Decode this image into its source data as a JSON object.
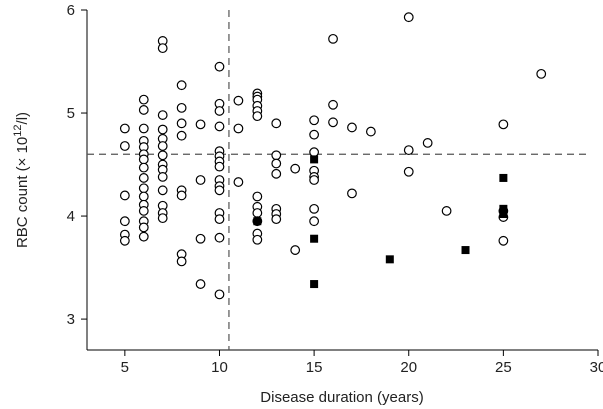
{
  "chart_data": {
    "type": "scatter",
    "title": "",
    "xlabel": "Disease duration (years)",
    "ylabel_main": "RBC count (×",
    "ylabel_base": " 10",
    "ylabel_exp": "12",
    "ylabel_tail": "/l)",
    "xlim": [
      3,
      30
    ],
    "ylim": [
      2.7,
      6.0
    ],
    "xticks": [
      5,
      10,
      15,
      20,
      25,
      30
    ],
    "yticks": [
      3,
      4,
      5,
      6
    ],
    "grid": false,
    "reference_lines": {
      "x": 10.5,
      "y": 4.6
    },
    "series": [
      {
        "marker": "open-circle",
        "points": [
          [
            5,
            4.85
          ],
          [
            5,
            4.68
          ],
          [
            5,
            4.2
          ],
          [
            5,
            3.95
          ],
          [
            5,
            3.82
          ],
          [
            5,
            3.76
          ],
          [
            6,
            5.13
          ],
          [
            6,
            5.03
          ],
          [
            6,
            4.85
          ],
          [
            6,
            4.73
          ],
          [
            6,
            4.67
          ],
          [
            6,
            4.6
          ],
          [
            6,
            4.55
          ],
          [
            6,
            4.47
          ],
          [
            6,
            4.37
          ],
          [
            6,
            4.27
          ],
          [
            6,
            4.19
          ],
          [
            6,
            4.11
          ],
          [
            6,
            4.05
          ],
          [
            6,
            3.95
          ],
          [
            6,
            3.89
          ],
          [
            6,
            3.8
          ],
          [
            7,
            5.7
          ],
          [
            7,
            5.63
          ],
          [
            7,
            4.98
          ],
          [
            7,
            4.84
          ],
          [
            7,
            4.75
          ],
          [
            7,
            4.68
          ],
          [
            7,
            4.59
          ],
          [
            7,
            4.5
          ],
          [
            7,
            4.45
          ],
          [
            7,
            4.38
          ],
          [
            7,
            4.25
          ],
          [
            7,
            4.1
          ],
          [
            7,
            4.03
          ],
          [
            7,
            3.98
          ],
          [
            8,
            5.27
          ],
          [
            8,
            5.05
          ],
          [
            8,
            4.9
          ],
          [
            8,
            4.78
          ],
          [
            8,
            4.25
          ],
          [
            8,
            4.2
          ],
          [
            8,
            3.63
          ],
          [
            8,
            3.56
          ],
          [
            9,
            4.89
          ],
          [
            9,
            4.35
          ],
          [
            9,
            3.78
          ],
          [
            9,
            3.34
          ],
          [
            10,
            5.45
          ],
          [
            10,
            5.09
          ],
          [
            10,
            5.02
          ],
          [
            10,
            4.87
          ],
          [
            10,
            4.63
          ],
          [
            10,
            4.58
          ],
          [
            10,
            4.53
          ],
          [
            10,
            4.48
          ],
          [
            10,
            4.35
          ],
          [
            10,
            4.29
          ],
          [
            10,
            4.25
          ],
          [
            10,
            4.03
          ],
          [
            10,
            3.97
          ],
          [
            10,
            3.79
          ],
          [
            10,
            3.24
          ],
          [
            11,
            5.12
          ],
          [
            11,
            4.85
          ],
          [
            11,
            4.33
          ],
          [
            12,
            5.19
          ],
          [
            12,
            5.16
          ],
          [
            12,
            5.13
          ],
          [
            12,
            5.07
          ],
          [
            12,
            5.02
          ],
          [
            12,
            4.97
          ],
          [
            12,
            4.19
          ],
          [
            12,
            4.09
          ],
          [
            12,
            4.03
          ],
          [
            12,
            3.95
          ],
          [
            12,
            3.83
          ],
          [
            12,
            3.77
          ],
          [
            13,
            4.9
          ],
          [
            13,
            4.59
          ],
          [
            13,
            4.51
          ],
          [
            13,
            4.41
          ],
          [
            13,
            4.07
          ],
          [
            13,
            4.02
          ],
          [
            13,
            3.97
          ],
          [
            14,
            4.46
          ],
          [
            14,
            3.67
          ],
          [
            15,
            4.93
          ],
          [
            15,
            4.79
          ],
          [
            15,
            4.62
          ],
          [
            15,
            4.44
          ],
          [
            15,
            4.38
          ],
          [
            15,
            4.35
          ],
          [
            15,
            4.07
          ],
          [
            15,
            3.95
          ],
          [
            16,
            5.72
          ],
          [
            16,
            5.08
          ],
          [
            16,
            4.91
          ],
          [
            17,
            4.86
          ],
          [
            17,
            4.22
          ],
          [
            18,
            4.82
          ],
          [
            20,
            5.93
          ],
          [
            20,
            4.64
          ],
          [
            20,
            4.43
          ],
          [
            21,
            4.71
          ],
          [
            22,
            4.05
          ],
          [
            25,
            4.89
          ],
          [
            25,
            4.05
          ],
          [
            25,
            3.99
          ],
          [
            25,
            3.76
          ],
          [
            27,
            5.38
          ]
        ]
      },
      {
        "marker": "filled-square",
        "points": [
          [
            12,
            3.95
          ],
          [
            15,
            4.55
          ],
          [
            15,
            3.78
          ],
          [
            15,
            3.34
          ],
          [
            19,
            3.58
          ],
          [
            23,
            3.67
          ],
          [
            25,
            4.37
          ],
          [
            25,
            4.07
          ],
          [
            25,
            4.02
          ]
        ]
      }
    ]
  }
}
